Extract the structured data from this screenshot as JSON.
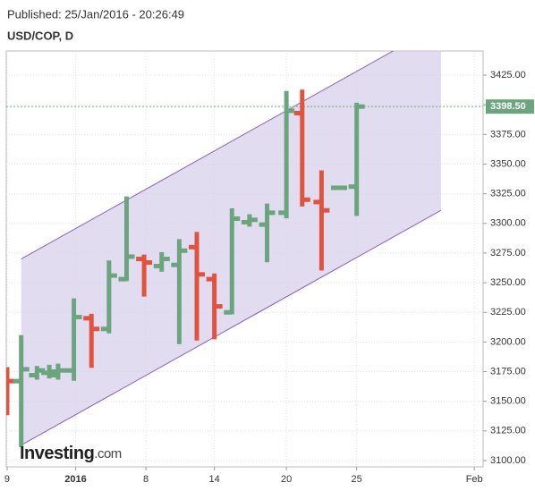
{
  "header": {
    "published": "Published: 25/Jan/2016 - 20:26:49",
    "symbol": "USD/COP, D"
  },
  "branding": {
    "name": "Investing",
    "suffix": ".com"
  },
  "chart_data": {
    "type": "ohlc",
    "x": [
      0,
      0.8,
      1.7,
      2.4,
      2.9,
      3.8,
      4.8,
      5.8,
      6.8,
      7.8,
      8.8,
      9.8,
      10.8,
      11.8,
      12.8,
      13.8,
      14.8,
      15.9,
      16.8,
      17.9,
      18.9,
      19.9
    ],
    "open": [
      3169,
      3167,
      3172,
      3174,
      3172,
      3176,
      3220,
      3211,
      3253,
      3270,
      3264,
      3265,
      3280,
      3253,
      3225,
      3301,
      3299,
      3309,
      3393,
      3318,
      3330,
      3331
    ],
    "high": [
      3178,
      3205,
      3179,
      3180,
      3181,
      3236,
      3223,
      3268,
      3322,
      3273,
      3275,
      3286,
      3292,
      3257,
      3312,
      3307,
      3316,
      3411,
      3412,
      3344,
      3330,
      3401
    ],
    "low": [
      3139,
      3112,
      3169,
      3170,
      3169,
      3168,
      3179,
      3208,
      3252,
      3239,
      3260,
      3199,
      3202,
      3203,
      3224,
      3298,
      3268,
      3305,
      3315,
      3261,
      3330,
      3307
    ],
    "close": [
      3167,
      3177,
      3176,
      3175,
      3176,
      3221,
      3211,
      3256,
      3272,
      3267,
      3270,
      3277,
      3257,
      3230,
      3304,
      3303,
      3309,
      3395,
      3320,
      3311,
      3330,
      3398.5
    ],
    "up_color": "#6aa57e",
    "down_color": "#e0533e",
    "channel": {
      "upper": [
        [
          0.8,
          3270
        ],
        [
          24.7,
          3468
        ]
      ],
      "lower": [
        [
          0.8,
          3113
        ],
        [
          24.7,
          3311
        ]
      ],
      "color": "#d8d0ec",
      "line_color": "#8b63b8",
      "x_end": 24.7
    },
    "last_price": {
      "value": 3398.5,
      "label": "3398.50",
      "color": "#6aa57e"
    },
    "xlim": [
      -0.05,
      27.1
    ],
    "ylim": [
      3094.7,
      3445.4
    ],
    "xticks": [
      {
        "value": 0,
        "label": "9"
      },
      {
        "value": 3.9,
        "label": "2016"
      },
      {
        "value": 7.9,
        "label": "8"
      },
      {
        "value": 11.8,
        "label": "14"
      },
      {
        "value": 15.9,
        "label": "20"
      },
      {
        "value": 19.9,
        "label": "25"
      },
      {
        "value": 26.6,
        "label": "Feb"
      }
    ],
    "yticks": [
      {
        "value": 3100,
        "label": "3100.00"
      },
      {
        "value": 3125,
        "label": "3125.00"
      },
      {
        "value": 3150,
        "label": "3150.00"
      },
      {
        "value": 3175,
        "label": "3175.00"
      },
      {
        "value": 3200,
        "label": "3200.00"
      },
      {
        "value": 3225,
        "label": "3225.00"
      },
      {
        "value": 3250,
        "label": "3250.00"
      },
      {
        "value": 3275,
        "label": "3275.00"
      },
      {
        "value": 3300,
        "label": "3300.00"
      },
      {
        "value": 3325,
        "label": "3325.00"
      },
      {
        "value": 3350,
        "label": "3350.00"
      },
      {
        "value": 3375,
        "label": "3375.00"
      },
      {
        "value": 3400,
        "label": "3400.00"
      },
      {
        "value": 3425,
        "label": "3425.00"
      }
    ],
    "grid": true
  }
}
